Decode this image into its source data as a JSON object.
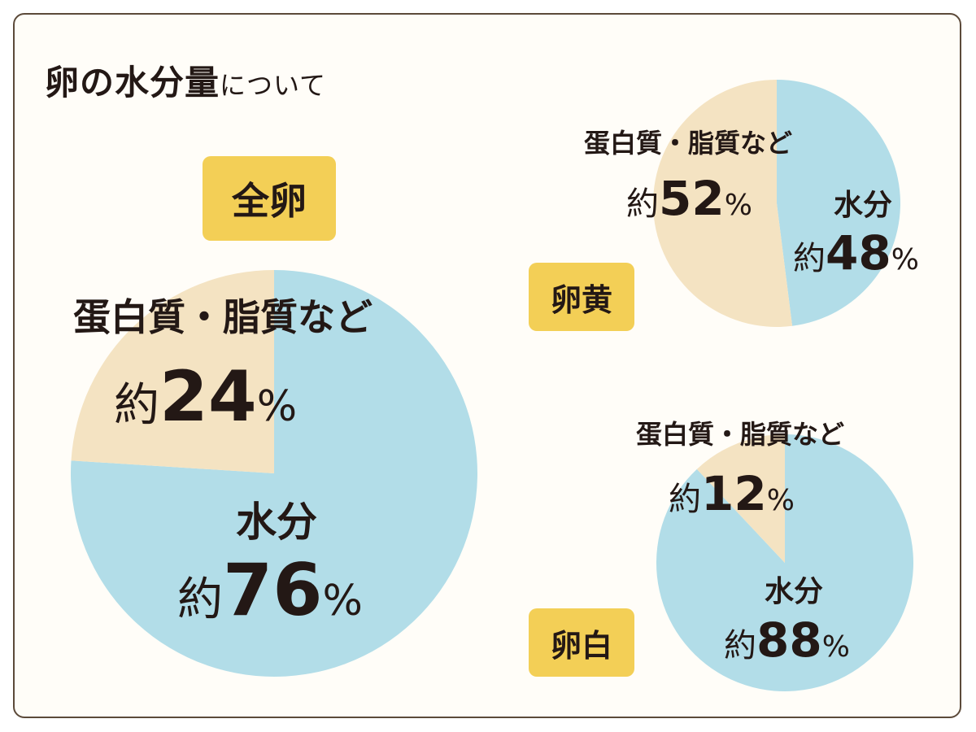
{
  "title": {
    "main": "卵の水分量",
    "suffix": "について"
  },
  "approx": "約",
  "percent_sign": "%",
  "colors": {
    "water": "#b2dde8",
    "solids": "#f4e3c2",
    "badge": "#f3cf56",
    "text": "#231815",
    "border": "#5c4a3a"
  },
  "chart_data": [
    {
      "type": "pie",
      "title": "全卵",
      "slices": [
        {
          "label": "水分",
          "value": 76,
          "color": "#b2dde8"
        },
        {
          "label": "蛋白質・脂質など",
          "value": 24,
          "color": "#f4e3c2"
        }
      ]
    },
    {
      "type": "pie",
      "title": "卵黄",
      "slices": [
        {
          "label": "水分",
          "value": 48,
          "color": "#b2dde8"
        },
        {
          "label": "蛋白質・脂質など",
          "value": 52,
          "color": "#f4e3c2"
        }
      ]
    },
    {
      "type": "pie",
      "title": "卵白",
      "slices": [
        {
          "label": "水分",
          "value": 88,
          "color": "#b2dde8"
        },
        {
          "label": "蛋白質・脂質など",
          "value": 12,
          "color": "#f4e3c2"
        }
      ]
    }
  ]
}
